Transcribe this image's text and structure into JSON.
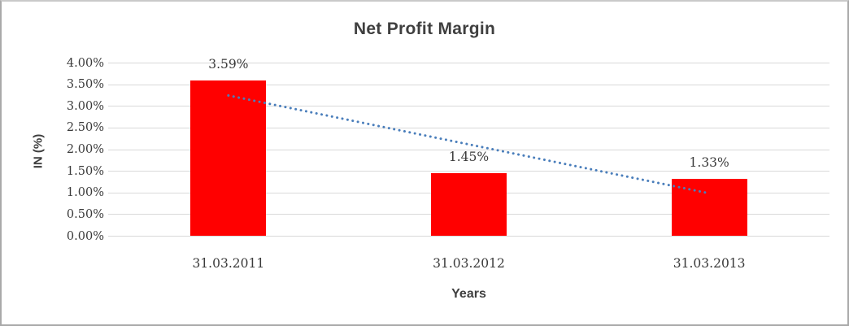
{
  "frame": {
    "background": "#ffffff",
    "border_color": "#a9a9a9"
  },
  "chart_data": {
    "type": "bar",
    "title": "Net Profit Margin",
    "xlabel": "Years",
    "ylabel": "IN (%)",
    "categories": [
      "31.03.2011",
      "31.03.2012",
      "31.03.2013"
    ],
    "values": [
      3.59,
      1.45,
      1.33
    ],
    "data_labels": [
      "3.59%",
      "1.45%",
      "1.33%"
    ],
    "ylim": [
      0,
      4
    ],
    "yticks": [
      {
        "v": 0.0,
        "label": "0.00%"
      },
      {
        "v": 0.5,
        "label": "0.50%"
      },
      {
        "v": 1.0,
        "label": "1.00%"
      },
      {
        "v": 1.5,
        "label": "1.50%"
      },
      {
        "v": 2.0,
        "label": "2.00%"
      },
      {
        "v": 2.5,
        "label": "2.50%"
      },
      {
        "v": 3.0,
        "label": "3.00%"
      },
      {
        "v": 3.5,
        "label": "3.50%"
      },
      {
        "v": 4.0,
        "label": "4.00%"
      }
    ],
    "grid": true,
    "legend": false,
    "bar_color": "#ff0000",
    "gridline_color": "#d9d9d9",
    "text_color": "#3a3a3a",
    "trendline": {
      "type": "linear",
      "style": "dotted",
      "color": "#4a7ebb",
      "start_category_index": 0,
      "start_value": 3.25,
      "end_category_index": 2,
      "end_value": 0.99
    }
  }
}
